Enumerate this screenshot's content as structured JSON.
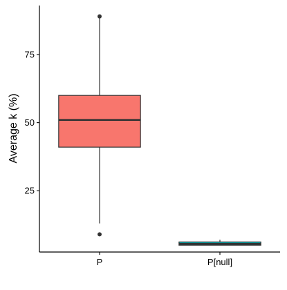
{
  "chart_data": {
    "type": "boxplot",
    "title": "",
    "xlabel": "",
    "ylabel": "Average k (%)",
    "categories": [
      "P",
      "P[null]"
    ],
    "ylim": [
      2.5,
      93
    ],
    "yticks": [
      25,
      50,
      75
    ],
    "boxes": [
      {
        "category": "P",
        "whisker_low": 13,
        "q1": 41,
        "median": 51,
        "q3": 60,
        "whisker_high": 89,
        "outliers": [
          9,
          89
        ],
        "fill": "#F8766D"
      },
      {
        "category": "P[null]",
        "whisker_low": 5,
        "q1": 5,
        "median": 5.5,
        "q3": 6.2,
        "whisker_high": 7,
        "outliers": [],
        "fill": "#00BFC4"
      }
    ],
    "grid": false,
    "legend": "none"
  },
  "colors": {
    "axis": "#000000",
    "box_line": "#333333"
  }
}
